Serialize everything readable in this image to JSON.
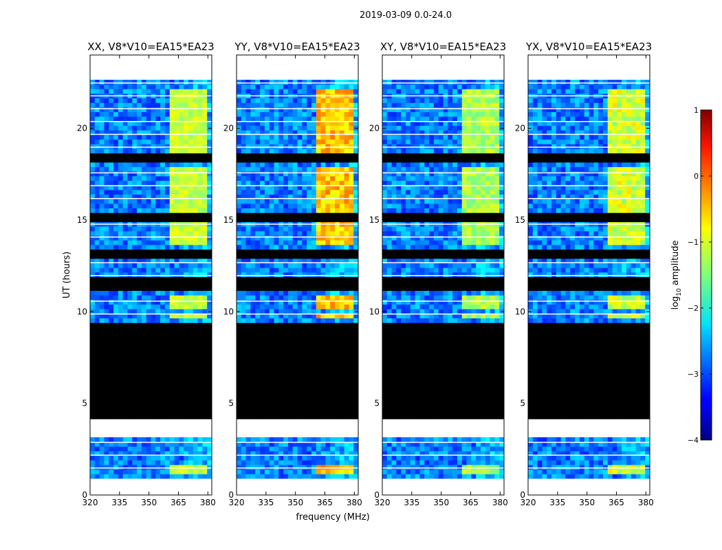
{
  "figure_title": "2019-03-09 0.0-24.0",
  "chart_data": {
    "type": "heatmap",
    "suptitle": "2019-03-09 0.0-24.0",
    "xlabel": "frequency (MHz)",
    "ylabel": "UT (hours)",
    "xlim": [
      320,
      382
    ],
    "ylim": [
      0,
      24
    ],
    "xticks": [
      320,
      335,
      350,
      365,
      380
    ],
    "yticks": [
      0,
      5,
      10,
      15,
      20
    ],
    "data_time_range": [
      0.9,
      22.6
    ],
    "panels": [
      {
        "title": "XX, V8*V10=EA15*EA23",
        "band_level": -1.4,
        "peak_level": -0.9
      },
      {
        "title": "YY, V8*V10=EA15*EA23",
        "band_level": -1.0,
        "peak_level": -0.2
      },
      {
        "title": "XY, V8*V10=EA15*EA23",
        "band_level": -1.6,
        "peak_level": -1.0
      },
      {
        "title": "YX, V8*V10=EA15*EA23",
        "band_level": -1.5,
        "peak_level": -0.7
      }
    ],
    "bright_band_mhz": [
      361.5,
      380.5
    ],
    "bright_blocks_ut": [
      [
        9.6,
        10.0
      ],
      [
        10.2,
        11.0
      ],
      [
        13.6,
        14.9
      ],
      [
        15.5,
        16.3
      ],
      [
        16.5,
        18.0
      ],
      [
        18.6,
        22.2
      ],
      [
        1.2,
        1.6
      ]
    ],
    "black_flagged_ut": [
      [
        4.1,
        9.3
      ],
      [
        12.8,
        13.4
      ],
      [
        15.0,
        15.5
      ],
      [
        18.1,
        18.6
      ],
      [
        11.2,
        11.8
      ]
    ],
    "white_gaps_ut": [
      [
        0,
        0.9
      ],
      [
        3.1,
        4.1
      ],
      [
        22.6,
        24
      ],
      [
        9.3,
        9.45
      ]
    ],
    "colorbar": {
      "label": "log10 amplitude",
      "label_main": "log",
      "label_sub": "10",
      "label_rest": " amplitude",
      "min": -4,
      "max": 1,
      "ticks": [
        "1",
        "0",
        "−1",
        "−2",
        "−3",
        "−4"
      ]
    }
  }
}
